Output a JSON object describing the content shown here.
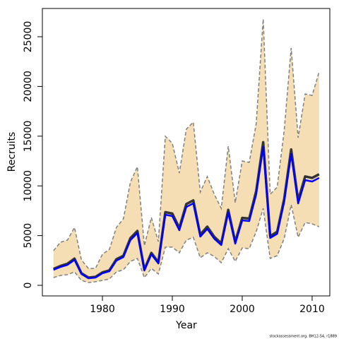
{
  "chart_data": {
    "type": "line",
    "xlabel": "Year",
    "ylabel": "Recruits",
    "footnote": "stockassessment.org, BH12-S4, r1889",
    "x": [
      1973,
      1974,
      1975,
      1976,
      1977,
      1978,
      1979,
      1980,
      1981,
      1982,
      1983,
      1984,
      1985,
      1986,
      1987,
      1988,
      1989,
      1990,
      1991,
      1992,
      1993,
      1994,
      1995,
      1996,
      1997,
      1998,
      1999,
      2000,
      2001,
      2002,
      2003,
      2004,
      2005,
      2006,
      2007,
      2008,
      2009,
      2010,
      2011
    ],
    "band": {
      "color": "#f5deb3",
      "line_color": "#808080",
      "upper": [
        3480,
        4330,
        4550,
        5820,
        2560,
        1700,
        1700,
        3120,
        3620,
        5820,
        6680,
        10370,
        11930,
        3980,
        6820,
        4400,
        14990,
        14280,
        11290,
        15700,
        16410,
        9380,
        10940,
        9160,
        7740,
        13990,
        8310,
        12500,
        12360,
        16260,
        26780,
        9160,
        9870,
        15550,
        23860,
        14840,
        19250,
        19100,
        21450
      ],
      "lower": [
        780,
        990,
        1070,
        1350,
        500,
        280,
        360,
        500,
        640,
        1350,
        1560,
        2410,
        2700,
        780,
        1700,
        1140,
        3840,
        3840,
        3270,
        4550,
        4830,
        2770,
        3270,
        2910,
        2270,
        3690,
        2410,
        3760,
        3690,
        5400,
        7740,
        2700,
        2980,
        4690,
        8100,
        4830,
        6320,
        6180,
        5890
      ]
    },
    "series": [
      {
        "color": "#333333",
        "values": [
          1650,
          1950,
          2170,
          2690,
          1220,
          780,
          850,
          1300,
          1510,
          2620,
          2980,
          4740,
          5470,
          1590,
          3260,
          2320,
          7360,
          7220,
          5760,
          8170,
          8540,
          5100,
          5900,
          4880,
          4220,
          7590,
          4370,
          6780,
          6710,
          9490,
          14390,
          4950,
          5390,
          8680,
          13660,
          8540,
          10950,
          10800,
          11170
        ]
      },
      {
        "color": "#0000ff",
        "values": [
          1560,
          1850,
          2060,
          2560,
          1140,
          710,
          780,
          1210,
          1420,
          2490,
          2840,
          4550,
          5260,
          1490,
          3120,
          2200,
          7100,
          6960,
          5540,
          7880,
          8240,
          4900,
          5680,
          4690,
          4050,
          7320,
          4190,
          6530,
          6460,
          9160,
          13920,
          4760,
          5180,
          8380,
          13210,
          8240,
          10580,
          10440,
          10800
        ]
      }
    ],
    "xlim": [
      1971.41,
      2012.53
    ],
    "ylim": [
      -1065,
      27841
    ],
    "xticks": [
      1980,
      1990,
      2000,
      2010
    ],
    "yticks": [
      0,
      5000,
      10000,
      15000,
      20000,
      25000
    ]
  }
}
